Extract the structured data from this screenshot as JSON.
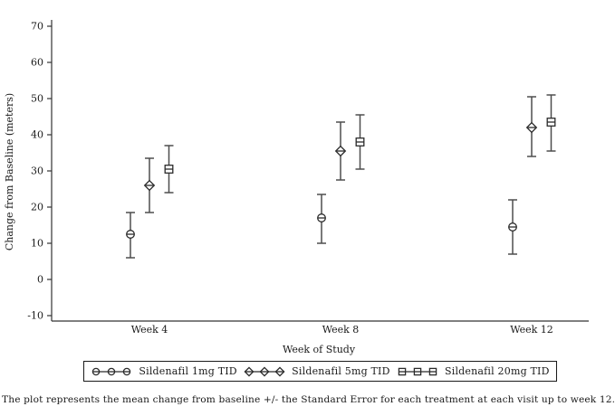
{
  "caption": "The plot represents the mean change from baseline +/- the Standard Error for each treatment at each visit up to week 12.",
  "colors": {
    "axis": "#333333",
    "error_bar": "#4d4d4d",
    "marker_stroke": "#2b2b2b",
    "text": "#1a1a1a",
    "background": "#ffffff"
  },
  "chart_data": {
    "type": "scatter",
    "subtype": "errorbar",
    "title": "",
    "xlabel": "Week of Study",
    "ylabel": "Change from Baseline (meters)",
    "categories": [
      "Week 4",
      "Week 8",
      "Week 12"
    ],
    "ylim": [
      -10,
      70
    ],
    "yticks": [
      70,
      60,
      50,
      40,
      30,
      20,
      10,
      0,
      -10
    ],
    "grid": false,
    "legend_position": "bottom",
    "error_note": "mean +/- Standard Error",
    "series": [
      {
        "name": "Sildenafil 1mg TID",
        "marker": "circle",
        "means": [
          12.5,
          17,
          14.5
        ],
        "lo": [
          6,
          10,
          7
        ],
        "hi": [
          18.5,
          23.5,
          22
        ]
      },
      {
        "name": "Sildenafil 5mg TID",
        "marker": "diamond",
        "means": [
          26,
          35.5,
          42
        ],
        "lo": [
          18.5,
          27.5,
          34
        ],
        "hi": [
          33.5,
          43.5,
          50.5
        ]
      },
      {
        "name": "Sildenafil 20mg TID",
        "marker": "square",
        "means": [
          30.5,
          38,
          43.5
        ],
        "lo": [
          24,
          30.5,
          35.5
        ],
        "hi": [
          37,
          45.5,
          51
        ]
      }
    ]
  }
}
